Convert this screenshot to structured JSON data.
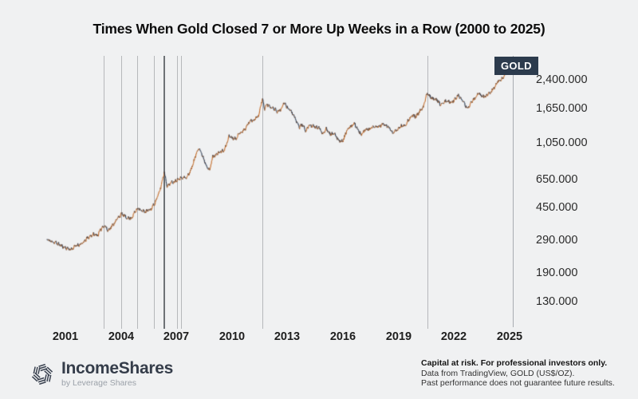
{
  "title": "Times When Gold Closed 7 or More Up Weeks in a Row (2000 to 2025)",
  "badge": {
    "label": "GOLD",
    "bg": "#2c3b4d",
    "fg": "#ffffff"
  },
  "chart_data": {
    "type": "line",
    "title": "Times When Gold Closed 7 or More Up Weeks in a Row (2000 to 2025)",
    "series_name": "GOLD (US$/OZ), weekly",
    "xlabel": "",
    "ylabel": "",
    "x_axis": {
      "range": [
        2000,
        2025.3
      ],
      "tick_years": [
        2001,
        2004,
        2007,
        2010,
        2013,
        2016,
        2019,
        2022,
        2025
      ],
      "tick_labels": [
        "2001",
        "2004",
        "2007",
        "2010",
        "2013",
        "2016",
        "2019",
        "2022",
        "2025"
      ]
    },
    "y_axis": {
      "scale": "log",
      "tick_values": [
        2400,
        1650,
        1050,
        650,
        450,
        290,
        190,
        130
      ],
      "tick_labels": [
        "2,400.000",
        "1,650.000",
        "1,050.000",
        "650.000",
        "450.000",
        "290.000",
        "190.000",
        "130.000"
      ]
    },
    "event_lines": {
      "meaning": "weeks when gold closed 7 or more up weeks in a row",
      "years": [
        2003.05,
        2004.0,
        2004.9,
        2005.8,
        2006.3,
        2007.05,
        2007.25,
        2011.65,
        2020.55
      ],
      "strong": [
        false,
        false,
        false,
        false,
        true,
        false,
        false,
        false,
        false
      ]
    },
    "anchors": {
      "years": [
        2000.0,
        2000.2,
        2000.5,
        2000.8,
        2001.1,
        2001.3,
        2001.6,
        2001.9,
        2002.2,
        2002.5,
        2002.75,
        2003.0,
        2003.15,
        2003.3,
        2003.6,
        2003.9,
        2004.05,
        2004.3,
        2004.55,
        2004.75,
        2004.95,
        2005.1,
        2005.35,
        2005.6,
        2005.85,
        2006.1,
        2006.35,
        2006.5,
        2006.7,
        2006.9,
        2007.1,
        2007.3,
        2007.55,
        2007.8,
        2008.0,
        2008.2,
        2008.4,
        2008.6,
        2008.8,
        2008.95,
        2009.15,
        2009.4,
        2009.6,
        2009.85,
        2010.0,
        2010.2,
        2010.45,
        2010.7,
        2010.95,
        2011.2,
        2011.45,
        2011.65,
        2011.75,
        2011.9,
        2012.1,
        2012.3,
        2012.45,
        2012.65,
        2012.8,
        2013.0,
        2013.2,
        2013.35,
        2013.5,
        2013.65,
        2013.8,
        2014.0,
        2014.2,
        2014.45,
        2014.7,
        2014.9,
        2015.1,
        2015.3,
        2015.55,
        2015.8,
        2016.0,
        2016.2,
        2016.5,
        2016.65,
        2016.85,
        2017.0,
        2017.2,
        2017.45,
        2017.7,
        2017.95,
        2018.2,
        2018.45,
        2018.7,
        2018.9,
        2019.1,
        2019.35,
        2019.55,
        2019.75,
        2019.95,
        2020.15,
        2020.35,
        2020.55,
        2020.7,
        2020.9,
        2021.1,
        2021.25,
        2021.45,
        2021.6,
        2021.8,
        2022.0,
        2022.2,
        2022.4,
        2022.6,
        2022.75,
        2022.95,
        2023.1,
        2023.3,
        2023.5,
        2023.7,
        2023.85,
        2024.0,
        2024.15,
        2024.35,
        2024.55,
        2024.7,
        2024.85,
        2025.0,
        2025.2
      ],
      "prices": [
        295,
        288,
        282,
        270,
        262,
        258,
        272,
        278,
        300,
        315,
        312,
        348,
        352,
        330,
        360,
        398,
        412,
        392,
        388,
        420,
        448,
        428,
        425,
        435,
        478,
        555,
        715,
        590,
        620,
        630,
        655,
        665,
        660,
        740,
        860,
        990,
        890,
        790,
        725,
        870,
        900,
        935,
        950,
        1150,
        1120,
        1110,
        1200,
        1250,
        1390,
        1420,
        1510,
        1880,
        1640,
        1740,
        1680,
        1640,
        1580,
        1620,
        1770,
        1670,
        1590,
        1480,
        1380,
        1290,
        1330,
        1230,
        1330,
        1290,
        1280,
        1180,
        1270,
        1180,
        1170,
        1080,
        1070,
        1230,
        1320,
        1340,
        1220,
        1160,
        1240,
        1260,
        1290,
        1300,
        1340,
        1290,
        1200,
        1230,
        1300,
        1320,
        1420,
        1500,
        1480,
        1580,
        1680,
        2030,
        1930,
        1870,
        1830,
        1730,
        1790,
        1810,
        1780,
        1830,
        1960,
        1850,
        1720,
        1650,
        1800,
        1870,
        2000,
        1940,
        1920,
        1990,
        2050,
        2160,
        2330,
        2400,
        2520,
        2650,
        2700,
        2750
      ]
    },
    "colors": {
      "up": "#c77434",
      "down": "#344358",
      "grid": "#b6b8bb",
      "grid_strong": "#6e7276",
      "axis": "#a8acb1"
    },
    "legend_position": "none",
    "grid": "vertical-event-lines-only"
  },
  "footer": {
    "brand": "IncomeShares",
    "sub_brand": "by Leverage Shares",
    "disclaimer_line1": "Capital at risk. For professional investors only.",
    "disclaimer_line2": "Data from TradingView, GOLD (US$/OZ).",
    "disclaimer_line3": "Past performance does not guarantee future results."
  }
}
